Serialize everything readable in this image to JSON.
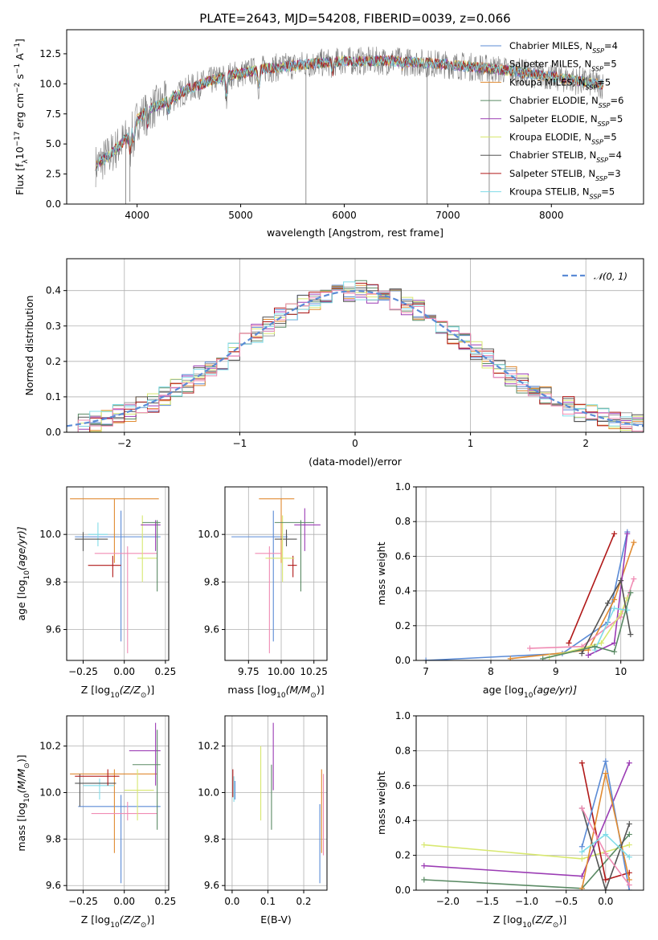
{
  "series_colors": {
    "chabrier_miles": "#5b8bd6",
    "salpeter_miles": "#a0a0a0",
    "kroupa_miles": "#e08a30",
    "chabrier_elodie": "#5a8a64",
    "salpeter_elodie": "#9b3cb4",
    "kroupa_elodie": "#d8e870",
    "chabrier_stelib": "#545454",
    "salpeter_stelib": "#b01818",
    "kroupa_stelib": "#80dce8",
    "pink": "#f08cb4"
  },
  "chart_data": [
    {
      "type": "line",
      "panel": "spectrum",
      "title": "PLATE=2643, MJD=54208, FIBERID=0039, z=0.066",
      "xlabel": "wavelength [Angstrom, rest frame]",
      "ylabel_parts": {
        "pre": "Flux [f",
        "sub": "λ",
        "mid": "10",
        "sup1": "−17",
        "post": " erg cm",
        "sup2": "−2",
        "post2": " s",
        "sup3": "−1",
        "post3": " A",
        "sup4": "−1",
        "end": "]"
      },
      "xlim": [
        3320,
        8890
      ],
      "ylim": [
        0,
        14.5
      ],
      "xticks": [
        4000,
        5000,
        6000,
        7000,
        8000
      ],
      "yticks": [
        0.0,
        2.5,
        5.0,
        7.5,
        10.0,
        12.5
      ],
      "ytick_labels": [
        "0.0",
        "2.5",
        "5.0",
        "7.5",
        "10.0",
        "12.5"
      ],
      "legend": [
        {
          "pre": "Chabrier MILES, N",
          "sub": "SSP",
          "post": "=4",
          "color": "#5b8bd6"
        },
        {
          "pre": "Salpeter MILES, N",
          "sub": "SSP",
          "post": "=5",
          "color": "#a0a0a0"
        },
        {
          "pre": "Kroupa MILES, N",
          "sub": "SSP",
          "post": "=5",
          "color": "#e08a30"
        },
        {
          "pre": "Chabrier ELODIE, N",
          "sub": "SSP",
          "post": "=6",
          "color": "#5a8a64"
        },
        {
          "pre": "Salpeter ELODIE, N",
          "sub": "SSP",
          "post": "=5",
          "color": "#9b3cb4"
        },
        {
          "pre": "Kroupa ELODIE, N",
          "sub": "SSP",
          "post": "=5",
          "color": "#d8e870"
        },
        {
          "pre": "Chabrier STELIB, N",
          "sub": "SSP",
          "post": "=4",
          "color": "#545454"
        },
        {
          "pre": "Salpeter STELIB, N",
          "sub": "SSP",
          "post": "=3",
          "color": "#b01818"
        },
        {
          "pre": "Kroupa STELIB, N",
          "sub": "SSP",
          "post": "=5",
          "color": "#80dce8"
        }
      ],
      "data_x_range": [
        3600,
        8500
      ],
      "continuum": [
        [
          3600,
          3.2
        ],
        [
          3750,
          4.2
        ],
        [
          3900,
          5.5
        ],
        [
          4000,
          7.0
        ],
        [
          4100,
          7.8
        ],
        [
          4300,
          8.6
        ],
        [
          4500,
          9.6
        ],
        [
          4800,
          10.5
        ],
        [
          5200,
          11.2
        ],
        [
          5600,
          11.6
        ],
        [
          6000,
          11.9
        ],
        [
          6500,
          11.9
        ],
        [
          7000,
          11.6
        ],
        [
          7500,
          11.2
        ],
        [
          8000,
          10.6
        ],
        [
          8500,
          9.9
        ]
      ],
      "absorption_dips": [
        [
          3933,
          1.5
        ],
        [
          3968,
          1.4
        ],
        [
          4102,
          1.2
        ],
        [
          4305,
          0.9
        ],
        [
          4861,
          1.6
        ],
        [
          5175,
          1.4
        ],
        [
          5890,
          0.8
        ],
        [
          6563,
          0.5
        ]
      ],
      "noise_amplitude": 1.2
    },
    {
      "type": "histogram",
      "panel": "residuals",
      "xlabel": "(data-model)/error",
      "ylabel": "Normed distribution",
      "xlim": [
        -2.5,
        2.5
      ],
      "ylim": [
        0,
        0.49
      ],
      "xticks": [
        -2,
        -1,
        0,
        1,
        2
      ],
      "xtick_labels": [
        "−2",
        "−1",
        "0",
        "1",
        "2"
      ],
      "yticks": [
        0.0,
        0.1,
        0.2,
        0.3,
        0.4
      ],
      "ytick_labels": [
        "0.0",
        "0.1",
        "0.2",
        "0.3",
        "0.4"
      ],
      "bin_width": 0.1,
      "legend_label": "𝒩(0, 1)",
      "legend_color": "#5b8bd6",
      "curve": "normal(0,1)",
      "jitter": 0.03
    },
    {
      "type": "errorbar",
      "panel": "age-vs-Z",
      "xlabel_pre": "Z [log",
      "xlabel_sub": "10",
      "xlabel_post": "(Z/Z",
      "xlabel_sun": "⊙",
      "xlabel_end": ")]",
      "ylabel_pre": "age  [log",
      "ylabel_sub": "10",
      "ylabel_post": "(age/yr)]",
      "xlim": [
        -0.35,
        0.27
      ],
      "ylim": [
        9.47,
        10.2
      ],
      "xticks": [
        -0.25,
        0.0,
        0.25
      ],
      "xtick_labels": [
        "−0.25",
        "0.00",
        "0.25"
      ],
      "yticks": [
        9.6,
        9.8,
        10.0
      ],
      "ytick_labels": [
        "9.6",
        "9.8",
        "10.0"
      ],
      "points": [
        {
          "x": -0.02,
          "xlo": -0.3,
          "xhi": 0.22,
          "y": 9.99,
          "ylo": 9.55,
          "yhi": 10.1,
          "color": "#5b8bd6"
        },
        {
          "x": -0.06,
          "xlo": -0.33,
          "xhi": 0.21,
          "y": 10.15,
          "ylo": 9.88,
          "yhi": 10.15,
          "color": "#e08a30"
        },
        {
          "x": -0.16,
          "xlo": -0.22,
          "xhi": -0.1,
          "y": 10.0,
          "ylo": 9.95,
          "yhi": 10.05,
          "color": "#80dce8"
        },
        {
          "x": -0.25,
          "xlo": -0.3,
          "xhi": -0.1,
          "y": 9.98,
          "ylo": 9.93,
          "yhi": 10.01,
          "color": "#545454"
        },
        {
          "x": 0.02,
          "xlo": -0.18,
          "xhi": 0.2,
          "y": 9.92,
          "ylo": 9.5,
          "yhi": 9.95,
          "color": "#f08cb4"
        },
        {
          "x": -0.07,
          "xlo": -0.22,
          "xhi": -0.02,
          "y": 9.87,
          "ylo": 9.82,
          "yhi": 9.91,
          "color": "#b01818"
        },
        {
          "x": 0.11,
          "xlo": 0.08,
          "xhi": 0.2,
          "y": 9.9,
          "ylo": 9.8,
          "yhi": 10.08,
          "color": "#d8e870"
        },
        {
          "x": 0.19,
          "xlo": 0.1,
          "xhi": 0.22,
          "y": 10.04,
          "ylo": 9.93,
          "yhi": 10.06,
          "color": "#9b3cb4"
        },
        {
          "x": 0.2,
          "xlo": 0.11,
          "xhi": 0.22,
          "y": 10.05,
          "ylo": 9.76,
          "yhi": 10.06,
          "color": "#5a8a64"
        }
      ]
    },
    {
      "type": "errorbar",
      "panel": "age-vs-mass",
      "xlabel_pre": "mass [log",
      "xlabel_sub": "10",
      "xlabel_post": "(M/M",
      "xlabel_sun": "⊙",
      "xlabel_end": ")]",
      "xlim": [
        9.57,
        10.35
      ],
      "ylim": [
        9.47,
        10.2
      ],
      "xticks": [
        9.75,
        10.0,
        10.25
      ],
      "xtick_labels": [
        "9.75",
        "10.00",
        "10.25"
      ],
      "yticks": [
        9.6,
        9.8,
        10.0
      ],
      "ytick_labels": [
        "9.6",
        "9.8",
        "10.0"
      ],
      "points": [
        {
          "x": 9.94,
          "xlo": 9.62,
          "xhi": 10.05,
          "y": 9.99,
          "ylo": 9.55,
          "yhi": 10.1,
          "color": "#5b8bd6"
        },
        {
          "x": 10.0,
          "xlo": 9.83,
          "xhi": 10.1,
          "y": 10.15,
          "ylo": 9.88,
          "yhi": 10.15,
          "color": "#e08a30"
        },
        {
          "x": 10.04,
          "xlo": 9.95,
          "xhi": 10.12,
          "y": 9.98,
          "ylo": 9.95,
          "yhi": 10.02,
          "color": "#545454"
        },
        {
          "x": 9.91,
          "xlo": 9.8,
          "xhi": 10.0,
          "y": 9.92,
          "ylo": 9.5,
          "yhi": 9.95,
          "color": "#f08cb4"
        },
        {
          "x": 10.09,
          "xlo": 10.05,
          "xhi": 10.12,
          "y": 9.87,
          "ylo": 9.82,
          "yhi": 9.91,
          "color": "#b01818"
        },
        {
          "x": 10.01,
          "xlo": 9.88,
          "xhi": 10.1,
          "y": 9.9,
          "ylo": 9.8,
          "yhi": 10.08,
          "color": "#d8e870"
        },
        {
          "x": 10.18,
          "xlo": 10.1,
          "xhi": 10.3,
          "y": 10.04,
          "ylo": 9.93,
          "yhi": 10.11,
          "color": "#9b3cb4"
        },
        {
          "x": 10.15,
          "xlo": 9.95,
          "xhi": 10.25,
          "y": 10.05,
          "ylo": 9.76,
          "yhi": 10.06,
          "color": "#5a8a64"
        }
      ]
    },
    {
      "type": "line",
      "panel": "massweight-vs-age",
      "xlabel_pre": "age  [log",
      "xlabel_sub": "10",
      "xlabel_post": "(age/yr)]",
      "ylabel": "mass weight",
      "xlim": [
        6.85,
        10.35
      ],
      "ylim": [
        0,
        1.0
      ],
      "xticks": [
        7,
        8,
        9,
        10
      ],
      "xtick_labels": [
        "7",
        "8",
        "9",
        "10"
      ],
      "yticks": [
        0.0,
        0.2,
        0.4,
        0.6,
        0.8,
        1.0
      ],
      "ytick_labels": [
        "0.0",
        "0.2",
        "0.4",
        "0.6",
        "0.8",
        "1.0"
      ],
      "series": [
        {
          "color": "#5b8bd6",
          "x": [
            7.0,
            9.1,
            9.8,
            10.1
          ],
          "y": [
            0.0,
            0.04,
            0.22,
            0.74
          ]
        },
        {
          "color": "#e08a30",
          "x": [
            8.3,
            9.5,
            9.9,
            10.2
          ],
          "y": [
            0.01,
            0.06,
            0.35,
            0.68
          ]
        },
        {
          "color": "#f08cb4",
          "x": [
            8.6,
            9.4,
            10.0,
            10.2
          ],
          "y": [
            0.07,
            0.08,
            0.25,
            0.47
          ]
        },
        {
          "color": "#b01818",
          "x": [
            9.2,
            9.9
          ],
          "y": [
            0.1,
            0.73
          ]
        },
        {
          "color": "#9b3cb4",
          "x": [
            9.5,
            9.9,
            10.1
          ],
          "y": [
            0.03,
            0.1,
            0.73
          ]
        },
        {
          "color": "#d8e870",
          "x": [
            8.9,
            9.7,
            10.0,
            10.1
          ],
          "y": [
            0.02,
            0.1,
            0.27,
            0.36
          ]
        },
        {
          "color": "#545454",
          "x": [
            9.4,
            9.8,
            10.0,
            10.15
          ],
          "y": [
            0.04,
            0.33,
            0.46,
            0.15
          ]
        },
        {
          "color": "#80dce8",
          "x": [
            9.6,
            9.9,
            10.1
          ],
          "y": [
            0.06,
            0.3,
            0.29
          ]
        },
        {
          "color": "#5a8a64",
          "x": [
            8.8,
            9.6,
            9.9,
            10.15
          ],
          "y": [
            0.01,
            0.08,
            0.05,
            0.39
          ]
        }
      ]
    },
    {
      "type": "errorbar",
      "panel": "mass-vs-Z",
      "xlabel_pre": "Z [log",
      "xlabel_sub": "10",
      "xlabel_post": "(Z/Z",
      "xlabel_sun": "⊙",
      "xlabel_end": ")]",
      "ylabel_pre": "mass [log",
      "ylabel_sub": "10",
      "ylabel_post": "(M/M",
      "ylabel_sun": "⊙",
      "ylabel_end": ")]",
      "xlim": [
        -0.35,
        0.27
      ],
      "ylim": [
        9.58,
        10.33
      ],
      "xticks": [
        -0.25,
        0.0,
        0.25
      ],
      "xtick_labels": [
        "−0.25",
        "0.00",
        "0.25"
      ],
      "yticks": [
        9.6,
        9.8,
        10.0,
        10.2
      ],
      "ytick_labels": [
        "9.6",
        "9.8",
        "10.0",
        "10.2"
      ],
      "points": [
        {
          "x": -0.02,
          "xlo": -0.28,
          "xhi": 0.22,
          "y": 9.94,
          "ylo": 9.61,
          "yhi": 9.99,
          "color": "#5b8bd6"
        },
        {
          "x": -0.06,
          "xlo": -0.33,
          "xhi": 0.2,
          "y": 10.08,
          "ylo": 9.74,
          "yhi": 10.1,
          "color": "#e08a30"
        },
        {
          "x": -0.15,
          "xlo": -0.25,
          "xhi": -0.06,
          "y": 10.03,
          "ylo": 9.97,
          "yhi": 10.06,
          "color": "#80dce8"
        },
        {
          "x": -0.27,
          "xlo": -0.3,
          "xhi": -0.05,
          "y": 10.04,
          "ylo": 9.94,
          "yhi": 10.08,
          "color": "#545454"
        },
        {
          "x": 0.02,
          "xlo": -0.2,
          "xhi": 0.2,
          "y": 9.91,
          "ylo": 9.88,
          "yhi": 9.96,
          "color": "#f08cb4"
        },
        {
          "x": -0.1,
          "xlo": -0.3,
          "xhi": -0.03,
          "y": 10.07,
          "ylo": 10.03,
          "yhi": 10.1,
          "color": "#b01818"
        },
        {
          "x": 0.08,
          "xlo": 0.0,
          "xhi": 0.18,
          "y": 10.01,
          "ylo": 9.88,
          "yhi": 10.1,
          "color": "#d8e870"
        },
        {
          "x": 0.19,
          "xlo": 0.03,
          "xhi": 0.22,
          "y": 10.18,
          "ylo": 10.03,
          "yhi": 10.3,
          "color": "#9b3cb4"
        },
        {
          "x": 0.2,
          "xlo": 0.05,
          "xhi": 0.22,
          "y": 10.12,
          "ylo": 9.84,
          "yhi": 10.27,
          "color": "#5a8a64"
        }
      ]
    },
    {
      "type": "errorbar",
      "panel": "mass-vs-EBV",
      "xlabel": "E(B-V)",
      "xlim": [
        -0.02,
        0.265
      ],
      "ylim": [
        9.58,
        10.33
      ],
      "xticks": [
        0.0,
        0.1,
        0.2
      ],
      "xtick_labels": [
        "0.0",
        "0.1",
        "0.2"
      ],
      "yticks": [
        9.6,
        9.8,
        10.0,
        10.2
      ],
      "ytick_labels": [
        "9.6",
        "9.8",
        "10.0",
        "10.2"
      ],
      "points": [
        {
          "x": 0.002,
          "y": 10.05,
          "ylo": 9.98,
          "yhi": 10.1,
          "color": "#b01818"
        },
        {
          "x": 0.005,
          "y": 10.02,
          "ylo": 9.96,
          "yhi": 10.07,
          "color": "#80dce8"
        },
        {
          "x": 0.008,
          "y": 10.0,
          "ylo": 9.97,
          "yhi": 10.05,
          "color": "#5b8bd6"
        },
        {
          "x": 0.08,
          "y": 10.04,
          "ylo": 9.88,
          "yhi": 10.2,
          "color": "#d8e870"
        },
        {
          "x": 0.11,
          "y": 9.98,
          "ylo": 9.84,
          "yhi": 10.12,
          "color": "#5a8a64"
        },
        {
          "x": 0.115,
          "y": 10.18,
          "ylo": 10.01,
          "yhi": 10.3,
          "color": "#9b3cb4"
        },
        {
          "x": 0.245,
          "y": 9.75,
          "ylo": 9.61,
          "yhi": 9.95,
          "color": "#5b8bd6"
        },
        {
          "x": 0.25,
          "y": 9.9,
          "ylo": 9.74,
          "yhi": 10.1,
          "color": "#e08a30"
        },
        {
          "x": 0.255,
          "y": 9.95,
          "ylo": 9.73,
          "yhi": 10.08,
          "color": "#f08cb4"
        }
      ]
    },
    {
      "type": "line",
      "panel": "massweight-vs-Z",
      "xlabel_pre": "Z [log",
      "xlabel_sub": "10",
      "xlabel_post": "(Z/Z",
      "xlabel_sun": "⊙",
      "xlabel_end": ")]",
      "ylabel": "mass weight",
      "xlim": [
        -2.4,
        0.48
      ],
      "ylim": [
        0,
        1.0
      ],
      "xticks": [
        -2.0,
        -1.5,
        -1.0,
        -0.5,
        0.0
      ],
      "xtick_labels": [
        "−2.0",
        "−1.5",
        "−1.0",
        "−0.5",
        "0.0"
      ],
      "yticks": [
        0.0,
        0.2,
        0.4,
        0.6,
        0.8,
        1.0
      ],
      "ytick_labels": [
        "0.0",
        "0.2",
        "0.4",
        "0.6",
        "0.8",
        "1.0"
      ],
      "series": [
        {
          "color": "#d8e870",
          "x": [
            -2.3,
            -0.3,
            0.3
          ],
          "y": [
            0.26,
            0.18,
            0.26
          ]
        },
        {
          "color": "#9b3cb4",
          "x": [
            -2.3,
            -0.3,
            0.3
          ],
          "y": [
            0.14,
            0.08,
            0.73
          ]
        },
        {
          "color": "#5a8a64",
          "x": [
            -2.3,
            -0.3,
            0.3
          ],
          "y": [
            0.06,
            0.01,
            0.32
          ]
        },
        {
          "color": "#b01818",
          "x": [
            -0.3,
            0.0,
            0.3
          ],
          "y": [
            0.73,
            0.06,
            0.1
          ]
        },
        {
          "color": "#5b8bd6",
          "x": [
            -0.3,
            0.0,
            0.3
          ],
          "y": [
            0.25,
            0.74,
            0.0
          ]
        },
        {
          "color": "#e08a30",
          "x": [
            -0.3,
            0.0,
            0.3
          ],
          "y": [
            0.01,
            0.67,
            0.06
          ]
        },
        {
          "color": "#545454",
          "x": [
            -0.3,
            0.0,
            0.3
          ],
          "y": [
            0.47,
            0.0,
            0.38
          ]
        },
        {
          "color": "#f08cb4",
          "x": [
            -0.3,
            0.0,
            0.3
          ],
          "y": [
            0.47,
            0.21,
            0.03
          ]
        },
        {
          "color": "#80dce8",
          "x": [
            -0.3,
            0.0,
            0.3
          ],
          "y": [
            0.22,
            0.32,
            0.19
          ]
        }
      ]
    }
  ]
}
